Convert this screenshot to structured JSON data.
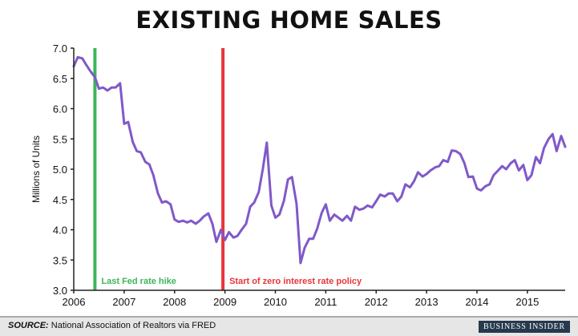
{
  "title": "EXISTING HOME SALES",
  "footer": {
    "source_label": "SOURCE:",
    "source_text": " National Association of Realtors via FRED",
    "brand": "BUSINESS INSIDER"
  },
  "colors": {
    "line": "#8059c9",
    "fed_hike": "#3cb55a",
    "zero_rate": "#e8353a",
    "axis": "#222222"
  },
  "chart_data": {
    "type": "line",
    "title": "EXISTING HOME SALES",
    "xlabel": "",
    "ylabel": "Millions of Units",
    "xlim": [
      2006.0,
      2015.75
    ],
    "ylim": [
      3.0,
      7.0
    ],
    "grid": false,
    "x_ticks": [
      2006,
      2007,
      2008,
      2009,
      2010,
      2011,
      2012,
      2013,
      2014,
      2015
    ],
    "x_tick_labels": [
      "2006",
      "2007",
      "2008",
      "2009",
      "2010",
      "2011",
      "2012",
      "2013",
      "2014",
      "2015"
    ],
    "y_ticks": [
      3.0,
      3.5,
      4.0,
      4.5,
      5.0,
      5.5,
      6.0,
      6.5,
      7.0
    ],
    "y_tick_labels": [
      "3.0",
      "3.5",
      "4.0",
      "4.5",
      "5.0",
      "5.5",
      "6.0",
      "6.5",
      "7.0"
    ],
    "annotations": [
      {
        "label": "Last Fed rate hike",
        "x": 2006.42,
        "color": "#3cb55a"
      },
      {
        "label": "Start of zero interest rate policy",
        "x": 2008.96,
        "color": "#e8353a"
      }
    ],
    "series": [
      {
        "x": [
          2006.0,
          2006.08,
          2006.17,
          2006.25,
          2006.33,
          2006.42,
          2006.5,
          2006.58,
          2006.67,
          2006.75,
          2006.83,
          2006.92,
          2007.0,
          2007.08,
          2007.17,
          2007.25,
          2007.33,
          2007.42,
          2007.5,
          2007.58,
          2007.67,
          2007.75,
          2007.83,
          2007.92,
          2008.0,
          2008.08,
          2008.17,
          2008.25,
          2008.33,
          2008.42,
          2008.5,
          2008.58,
          2008.67,
          2008.75,
          2008.83,
          2008.92,
          2009.0,
          2009.08,
          2009.17,
          2009.25,
          2009.33,
          2009.42,
          2009.5,
          2009.58,
          2009.67,
          2009.75,
          2009.83,
          2009.92,
          2010.0,
          2010.08,
          2010.17,
          2010.25,
          2010.33,
          2010.42,
          2010.5,
          2010.58,
          2010.67,
          2010.75,
          2010.83,
          2010.92,
          2011.0,
          2011.08,
          2011.17,
          2011.25,
          2011.33,
          2011.42,
          2011.5,
          2011.58,
          2011.67,
          2011.75,
          2011.83,
          2011.92,
          2012.0,
          2012.08,
          2012.17,
          2012.25,
          2012.33,
          2012.42,
          2012.5,
          2012.58,
          2012.67,
          2012.75,
          2012.83,
          2012.92,
          2013.0,
          2013.08,
          2013.17,
          2013.25,
          2013.33,
          2013.42,
          2013.5,
          2013.58,
          2013.67,
          2013.75,
          2013.83,
          2013.92,
          2014.0,
          2014.08,
          2014.17,
          2014.25,
          2014.33,
          2014.42,
          2014.5,
          2014.58,
          2014.67,
          2014.75,
          2014.83,
          2014.92,
          2015.0,
          2015.08,
          2015.17,
          2015.25,
          2015.33,
          2015.42,
          2015.5,
          2015.58,
          2015.67,
          2015.75
        ],
        "values": [
          6.7,
          6.85,
          6.83,
          6.72,
          6.62,
          6.52,
          6.33,
          6.35,
          6.3,
          6.35,
          6.35,
          6.42,
          5.75,
          5.78,
          5.45,
          5.3,
          5.28,
          5.12,
          5.08,
          4.9,
          4.6,
          4.45,
          4.47,
          4.42,
          4.17,
          4.13,
          4.15,
          4.12,
          4.15,
          4.1,
          4.15,
          4.22,
          4.27,
          4.1,
          3.8,
          4.0,
          3.83,
          3.96,
          3.87,
          3.9,
          4.0,
          4.1,
          4.38,
          4.45,
          4.62,
          5.0,
          5.44,
          4.4,
          4.2,
          4.25,
          4.48,
          4.83,
          4.87,
          4.43,
          3.45,
          3.7,
          3.85,
          3.85,
          4.02,
          4.28,
          4.42,
          4.15,
          4.25,
          4.2,
          4.15,
          4.23,
          4.15,
          4.38,
          4.33,
          4.35,
          4.4,
          4.37,
          4.47,
          4.58,
          4.55,
          4.6,
          4.6,
          4.47,
          4.55,
          4.75,
          4.7,
          4.8,
          4.95,
          4.88,
          4.92,
          4.98,
          5.03,
          5.05,
          5.15,
          5.12,
          5.31,
          5.3,
          5.25,
          5.1,
          4.87,
          4.88,
          4.68,
          4.65,
          4.72,
          4.75,
          4.9,
          4.98,
          5.05,
          5.0,
          5.1,
          5.15,
          4.98,
          5.07,
          4.82,
          4.9,
          5.2,
          5.1,
          5.35,
          5.5,
          5.58,
          5.3,
          5.55,
          5.37
        ]
      }
    ]
  }
}
